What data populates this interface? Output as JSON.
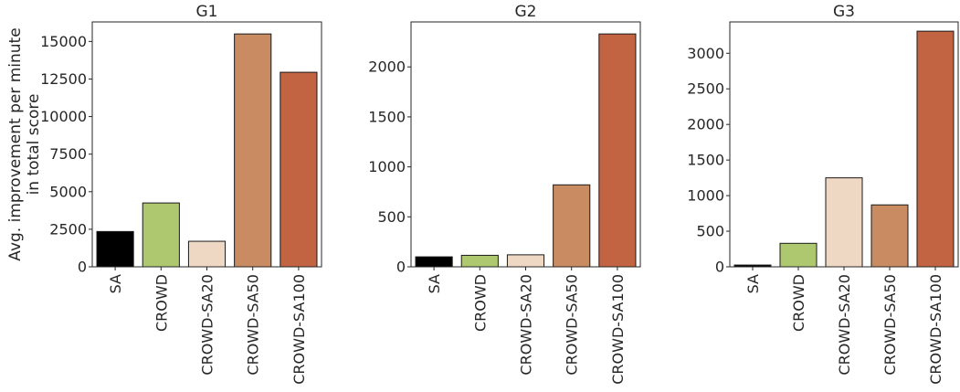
{
  "shared_ylabel": [
    "Avg. improvement per minute",
    "in total score"
  ],
  "colors": {
    "SA": "#000000",
    "CROWD": "#adc86e",
    "CROWD-SA20": "#eed8c4",
    "CROWD-SA50": "#c88b62",
    "CROWD-SA100": "#c26341",
    "axis": "#262626",
    "bar_edge": "#1a1a1a"
  },
  "chart_data": [
    {
      "type": "bar",
      "title": "G1",
      "xlabel": "",
      "ylabel": "Avg. improvement per minute in total score",
      "categories": [
        "SA",
        "CROWD",
        "CROWD-SA20",
        "CROWD-SA50",
        "CROWD-SA100"
      ],
      "values": [
        2350,
        4250,
        1700,
        15500,
        12950
      ],
      "ylim": [
        0,
        16300
      ],
      "yticks": [
        0,
        2500,
        5000,
        7500,
        10000,
        12500,
        15000
      ],
      "ytick_labels": [
        "0",
        "2500",
        "5000",
        "7500",
        "10000",
        "12500",
        "15000"
      ],
      "grid": false
    },
    {
      "type": "bar",
      "title": "G2",
      "xlabel": "",
      "ylabel": "",
      "categories": [
        "SA",
        "CROWD",
        "CROWD-SA20",
        "CROWD-SA50",
        "CROWD-SA100"
      ],
      "values": [
        100,
        115,
        120,
        820,
        2330
      ],
      "ylim": [
        0,
        2450
      ],
      "yticks": [
        0,
        500,
        1000,
        1500,
        2000
      ],
      "ytick_labels": [
        "0",
        "500",
        "1000",
        "1500",
        "2000"
      ],
      "grid": false
    },
    {
      "type": "bar",
      "title": "G3",
      "xlabel": "",
      "ylabel": "",
      "categories": [
        "SA",
        "CROWD",
        "CROWD-SA20",
        "CROWD-SA50",
        "CROWD-SA100"
      ],
      "values": [
        25,
        330,
        1250,
        870,
        3310
      ],
      "ylim": [
        0,
        3440
      ],
      "yticks": [
        0,
        500,
        1000,
        1500,
        2000,
        2500,
        3000
      ],
      "ytick_labels": [
        "0",
        "500",
        "1000",
        "1500",
        "2000",
        "2500",
        "3000"
      ],
      "grid": false
    }
  ]
}
